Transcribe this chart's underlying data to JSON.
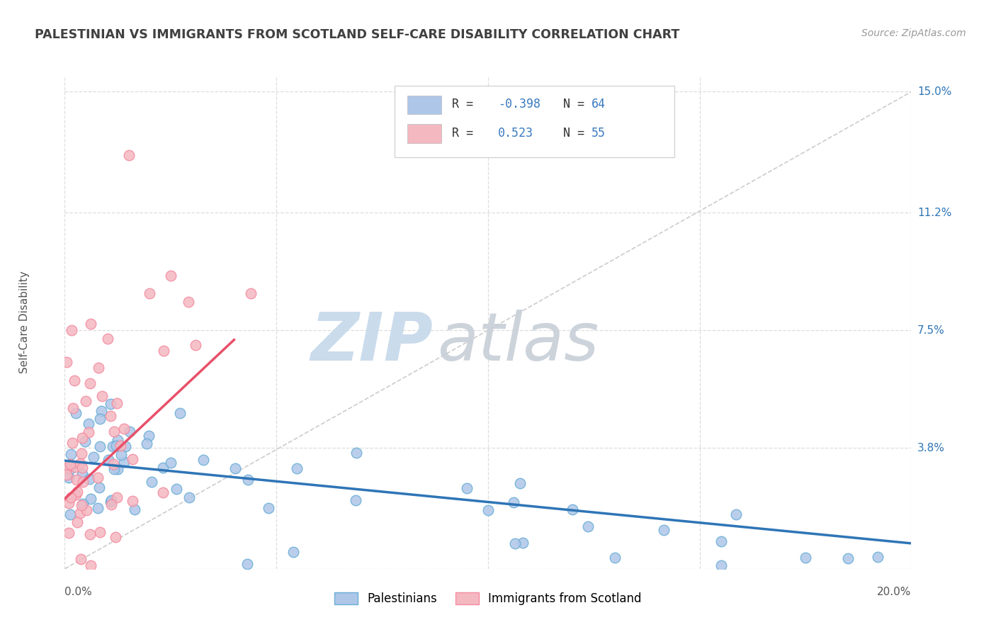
{
  "title": "PALESTINIAN VS IMMIGRANTS FROM SCOTLAND SELF-CARE DISABILITY CORRELATION CHART",
  "source": "Source: ZipAtlas.com",
  "ylabel": "Self-Care Disability",
  "yticks": [
    0.0,
    0.038,
    0.075,
    0.112,
    0.15
  ],
  "ytick_labels": [
    "",
    "3.8%",
    "7.5%",
    "11.2%",
    "15.0%"
  ],
  "xlim": [
    0.0,
    0.2
  ],
  "ylim": [
    0.0,
    0.155
  ],
  "blue_color": "#6aaed6",
  "pink_color": "#f48ca0",
  "blue_fill": "#aec6e8",
  "pink_fill": "#f4b8c1",
  "title_color": "#404040",
  "source_color": "#999999",
  "grid_color": "#dddddd",
  "trend_blue_color": "#2e75b6",
  "trend_pink_color": "#e8506a",
  "watermark_zip_color": "#c5d8ea",
  "watermark_atlas_color": "#c8cfd8",
  "r_value_color": "#3a7abf",
  "legend_text_color": "#333333",
  "legend_border_color": "#cccccc",
  "blue_r": -0.398,
  "blue_n": 64,
  "pink_r": 0.523,
  "pink_n": 55,
  "blue_trend_x": [
    0.0,
    0.2
  ],
  "blue_trend_y": [
    0.034,
    0.008
  ],
  "pink_trend_x": [
    0.0,
    0.04
  ],
  "pink_trend_y": [
    0.022,
    0.072
  ]
}
